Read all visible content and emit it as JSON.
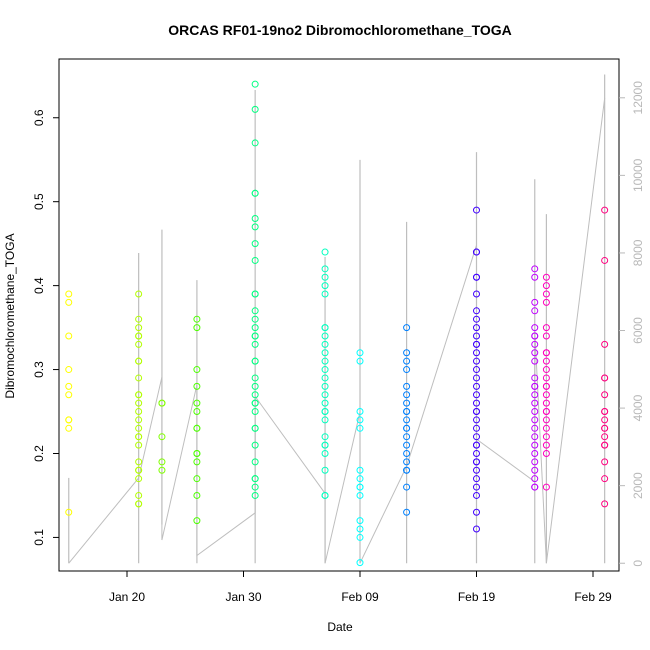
{
  "chart_data": {
    "type": "scatter",
    "title": "ORCAS RF01-19no2 Dibromochloromethane_TOGA",
    "xlabel": "Date",
    "ylabel": "Dibromochloromethane_TOGA",
    "x_ticks": [
      "Jan 20",
      "Jan 30",
      "Feb 09",
      "Feb 19",
      "Feb 29"
    ],
    "y_ticks": [
      "0.1",
      "0.2",
      "0.3",
      "0.4",
      "0.5",
      "0.6"
    ],
    "y_right_ticks": [
      "0",
      "2000",
      "4000",
      "6000",
      "8000",
      "10000",
      "12000"
    ],
    "ylim": [
      0.06,
      0.67
    ],
    "y_right_lim": [
      -200,
      13000
    ],
    "colors": {
      "line": "#bebebe",
      "right_axis": "#b8b8b8"
    },
    "flights": [
      {
        "date": "2016-01-15",
        "color": "#ffff00",
        "values": [
          0.39,
          0.38,
          0.34,
          0.3,
          0.28,
          0.27,
          0.24,
          0.24,
          0.23,
          0.13
        ]
      },
      {
        "date": "2016-01-21",
        "color": "#b3ff00",
        "values": [
          0.39,
          0.36,
          0.35,
          0.34,
          0.34,
          0.33,
          0.31,
          0.31,
          0.29,
          0.27,
          0.27,
          0.26,
          0.25,
          0.24,
          0.23,
          0.22,
          0.22,
          0.21,
          0.19,
          0.18,
          0.18,
          0.17,
          0.15,
          0.14,
          0.14
        ]
      },
      {
        "date": "2016-01-23",
        "color": "#80ff00",
        "values": [
          0.26,
          0.26,
          0.22,
          0.19,
          0.18
        ]
      },
      {
        "date": "2016-01-26",
        "color": "#4dff00",
        "values": [
          0.36,
          0.35,
          0.3,
          0.28,
          0.26,
          0.25,
          0.23,
          0.23,
          0.2,
          0.2,
          0.19,
          0.17,
          0.15,
          0.12
        ]
      },
      {
        "date": "2016-01-31",
        "color": "#00ff80",
        "values": [
          0.64,
          0.61,
          0.57,
          0.51,
          0.51,
          0.48,
          0.47,
          0.45,
          0.43,
          0.39,
          0.39,
          0.37,
          0.36,
          0.35,
          0.34,
          0.34,
          0.33,
          0.31,
          0.31,
          0.29,
          0.28,
          0.27,
          0.26,
          0.26,
          0.25,
          0.23,
          0.23,
          0.21,
          0.19,
          0.17,
          0.17,
          0.16,
          0.15
        ]
      },
      {
        "date": "2016-02-06",
        "color": "#00ffbf",
        "values": [
          0.44,
          0.42,
          0.41,
          0.4,
          0.39,
          0.35,
          0.35,
          0.34,
          0.33,
          0.32,
          0.31,
          0.3,
          0.29,
          0.28,
          0.27,
          0.26,
          0.25,
          0.25,
          0.24,
          0.22,
          0.21,
          0.21,
          0.2,
          0.18,
          0.15,
          0.15
        ]
      },
      {
        "date": "2016-02-09",
        "color": "#00ffff",
        "values": [
          0.32,
          0.31,
          0.25,
          0.24,
          0.23,
          0.18,
          0.17,
          0.16,
          0.16,
          0.15,
          0.12,
          0.11,
          0.1,
          0.07
        ]
      },
      {
        "date": "2016-02-13",
        "color": "#0080ff",
        "values": [
          0.35,
          0.32,
          0.31,
          0.3,
          0.28,
          0.27,
          0.26,
          0.25,
          0.25,
          0.24,
          0.23,
          0.23,
          0.22,
          0.21,
          0.2,
          0.19,
          0.18,
          0.18,
          0.16,
          0.13
        ]
      },
      {
        "date": "2016-02-19",
        "color": "#4000ff",
        "values": [
          0.49,
          0.44,
          0.44,
          0.41,
          0.41,
          0.39,
          0.37,
          0.36,
          0.35,
          0.34,
          0.33,
          0.33,
          0.32,
          0.31,
          0.3,
          0.29,
          0.28,
          0.27,
          0.26,
          0.25,
          0.25,
          0.24,
          0.23,
          0.22,
          0.21,
          0.21,
          0.2,
          0.19,
          0.19,
          0.18,
          0.17,
          0.16,
          0.15,
          0.13,
          0.11
        ]
      },
      {
        "date": "2016-02-24",
        "color": "#bf00ff",
        "values": [
          0.42,
          0.41,
          0.38,
          0.37,
          0.35,
          0.34,
          0.34,
          0.33,
          0.32,
          0.31,
          0.29,
          0.28,
          0.28,
          0.27,
          0.26,
          0.25,
          0.24,
          0.23,
          0.22,
          0.21,
          0.2,
          0.19,
          0.18,
          0.17,
          0.16,
          0.16
        ]
      },
      {
        "date": "2016-02-25",
        "color": "#ff00bf",
        "values": [
          0.41,
          0.4,
          0.39,
          0.38,
          0.35,
          0.34,
          0.32,
          0.32,
          0.31,
          0.3,
          0.29,
          0.28,
          0.28,
          0.27,
          0.26,
          0.25,
          0.25,
          0.24,
          0.23,
          0.22,
          0.21,
          0.2,
          0.16
        ]
      },
      {
        "date": "2016-03-01",
        "color": "#ff0080",
        "values": [
          0.49,
          0.43,
          0.33,
          0.29,
          0.29,
          0.27,
          0.25,
          0.25,
          0.24,
          0.23,
          0.23,
          0.22,
          0.21,
          0.21,
          0.19,
          0.17,
          0.14
        ]
      }
    ],
    "altitude_series": {
      "name": "",
      "points": [
        [
          "2016-01-15",
          0
        ],
        [
          "2016-01-21",
          2200
        ],
        [
          "2016-01-23",
          4800
        ],
        [
          "2016-01-23",
          600
        ],
        [
          "2016-01-26",
          4600
        ],
        [
          "2016-01-26",
          200
        ],
        [
          "2016-01-31",
          1300
        ],
        [
          "2016-01-31",
          4300
        ],
        [
          "2016-02-06",
          1800
        ],
        [
          "2016-02-06",
          0
        ],
        [
          "2016-02-09",
          3900
        ],
        [
          "2016-02-09",
          0
        ],
        [
          "2016-02-13",
          2500
        ],
        [
          "2016-02-19",
          8200
        ],
        [
          "2016-02-19",
          3200
        ],
        [
          "2016-02-24",
          2100
        ],
        [
          "2016-02-24",
          6000
        ],
        [
          "2016-02-25",
          0
        ],
        [
          "2016-03-01",
          12000
        ]
      ],
      "vertical_profiles": [
        [
          "2016-01-15",
          0,
          2200
        ],
        [
          "2016-01-21",
          0,
          8000
        ],
        [
          "2016-01-23",
          1000,
          8600
        ],
        [
          "2016-01-26",
          0,
          7300
        ],
        [
          "2016-01-31",
          0,
          12200
        ],
        [
          "2016-02-06",
          0,
          7900
        ],
        [
          "2016-02-09",
          0,
          10400
        ],
        [
          "2016-02-13",
          0,
          8800
        ],
        [
          "2016-02-19",
          0,
          10600
        ],
        [
          "2016-02-24",
          0,
          9900
        ],
        [
          "2016-02-25",
          0,
          9000
        ],
        [
          "2016-03-01",
          0,
          12600
        ]
      ]
    }
  }
}
